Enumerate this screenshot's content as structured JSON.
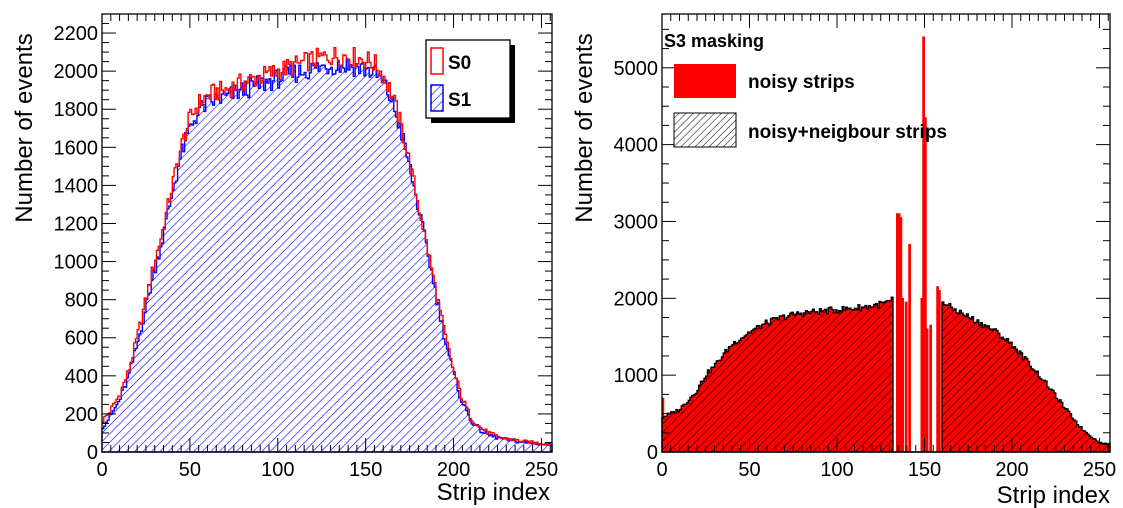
{
  "colors": {
    "s0": "#ff0000",
    "s1": "#0000ff",
    "noisy": "#ff0000",
    "neighbour_fill": "#cc0000",
    "neighbour_outline": "#000000",
    "axis": "#000000"
  },
  "chart_data": [
    {
      "type": "histogram",
      "xlabel": "Strip index",
      "ylabel": "Number of events",
      "xlim": [
        0,
        256
      ],
      "ylim": [
        0,
        2300
      ],
      "x_ticks": [
        0,
        50,
        100,
        150,
        200,
        250
      ],
      "y_ticks": [
        0,
        200,
        400,
        600,
        800,
        1000,
        1200,
        1400,
        1600,
        1800,
        2000,
        2200
      ],
      "legend_placement": "top-right",
      "series": [
        {
          "name": "S0",
          "style": "red outline",
          "bins": [
            0,
            256
          ],
          "profile_x": [
            0,
            5,
            10,
            15,
            20,
            25,
            30,
            35,
            40,
            45,
            50,
            55,
            60,
            65,
            70,
            75,
            80,
            90,
            100,
            110,
            120,
            130,
            140,
            150,
            155,
            160,
            165,
            170,
            175,
            180,
            185,
            190,
            195,
            200,
            205,
            210,
            215,
            220,
            225,
            230,
            240,
            250,
            255
          ],
          "profile_y": [
            160,
            220,
            300,
            420,
            600,
            800,
            1000,
            1180,
            1400,
            1600,
            1750,
            1830,
            1870,
            1890,
            1900,
            1920,
            1940,
            1970,
            2000,
            2030,
            2060,
            2080,
            2080,
            2060,
            2040,
            1980,
            1880,
            1720,
            1520,
            1300,
            1080,
            850,
            620,
            430,
            280,
            180,
            130,
            100,
            80,
            70,
            55,
            45,
            40
          ]
        },
        {
          "name": "S1",
          "style": "blue hatched",
          "bins": [
            0,
            256
          ],
          "profile_x": [
            0,
            5,
            10,
            15,
            20,
            25,
            30,
            35,
            40,
            45,
            50,
            55,
            60,
            65,
            70,
            75,
            80,
            90,
            100,
            110,
            120,
            130,
            140,
            150,
            155,
            160,
            165,
            170,
            175,
            180,
            185,
            190,
            195,
            200,
            205,
            210,
            215,
            220,
            225,
            230,
            240,
            250,
            255
          ],
          "profile_y": [
            130,
            190,
            270,
            390,
            560,
            760,
            960,
            1140,
            1360,
            1560,
            1700,
            1790,
            1830,
            1850,
            1860,
            1880,
            1900,
            1930,
            1960,
            1990,
            2010,
            2030,
            2030,
            2010,
            1990,
            1940,
            1840,
            1690,
            1500,
            1280,
            1060,
            830,
            600,
            410,
            260,
            165,
            115,
            90,
            75,
            65,
            50,
            42,
            38
          ]
        }
      ]
    },
    {
      "type": "histogram",
      "xlabel": "Strip index",
      "ylabel": "Number of events",
      "title": "S3 masking",
      "xlim": [
        0,
        256
      ],
      "ylim": [
        0,
        5700
      ],
      "x_ticks": [
        0,
        50,
        100,
        150,
        200,
        250
      ],
      "y_ticks": [
        0,
        1000,
        2000,
        3000,
        4000,
        5000
      ],
      "legend_placement": "top-left",
      "series": [
        {
          "name": "noisy strips",
          "style": "solid red",
          "bins": [
            0,
            256
          ],
          "profile_x": [
            0,
            3,
            10,
            20,
            25,
            30,
            40,
            50,
            60,
            70,
            80,
            90,
            100,
            110,
            120,
            130,
            132,
            160,
            165,
            170,
            180,
            190,
            200,
            210,
            220,
            230,
            240,
            250,
            255
          ],
          "profile_y": [
            450,
            480,
            550,
            800,
            1000,
            1120,
            1400,
            1560,
            1680,
            1760,
            1810,
            1830,
            1850,
            1870,
            1900,
            1950,
            1980,
            1970,
            1880,
            1820,
            1700,
            1580,
            1400,
            1150,
            880,
            580,
            300,
            120,
            100
          ],
          "spikes": [
            {
              "x": 0,
              "y": 700
            },
            {
              "x": 134,
              "y": 3100
            },
            {
              "x": 135,
              "y": 3100
            },
            {
              "x": 136,
              "y": 3050
            },
            {
              "x": 137,
              "y": 2000
            },
            {
              "x": 139,
              "y": 1950
            },
            {
              "x": 141,
              "y": 2700
            },
            {
              "x": 148,
              "y": 2000
            },
            {
              "x": 149,
              "y": 5400
            },
            {
              "x": 150,
              "y": 4350
            },
            {
              "x": 151,
              "y": 1600
            },
            {
              "x": 153,
              "y": 1650
            },
            {
              "x": 157,
              "y": 2150
            },
            {
              "x": 158,
              "y": 2100
            }
          ]
        },
        {
          "name": "noisy+neigbour strips",
          "style": "hatched, black outline",
          "bins": [
            0,
            256
          ],
          "masked_ranges": [
            [
              132,
              160
            ]
          ],
          "profile_x": [
            0,
            3,
            10,
            20,
            25,
            30,
            40,
            50,
            60,
            70,
            80,
            90,
            100,
            110,
            120,
            130,
            132,
            160,
            165,
            170,
            180,
            190,
            200,
            210,
            220,
            230,
            240,
            250,
            255
          ],
          "profile_y": [
            450,
            480,
            550,
            800,
            1000,
            1120,
            1400,
            1560,
            1680,
            1760,
            1810,
            1830,
            1850,
            1870,
            1900,
            1950,
            1980,
            1970,
            1880,
            1820,
            1700,
            1580,
            1400,
            1150,
            880,
            580,
            300,
            120,
            100
          ]
        }
      ]
    }
  ]
}
